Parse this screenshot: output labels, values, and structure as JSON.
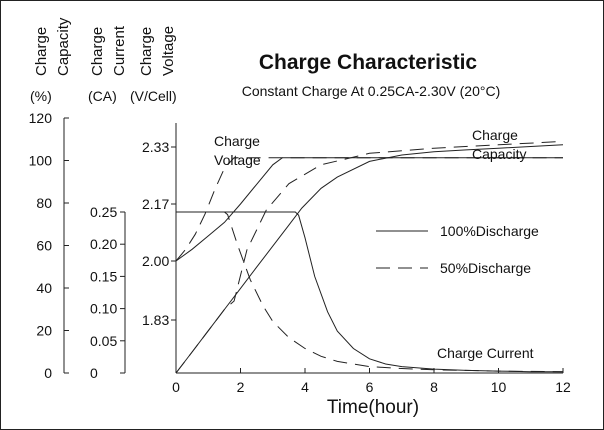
{
  "chart_data": {
    "type": "line",
    "title": "Charge Characteristic",
    "subtitle": "Constant Charge At 0.25CA-2.30V (20°C)",
    "title_color": "#7a2a7e",
    "xlabel": "Time(hour)",
    "xlim": [
      0,
      12
    ],
    "x_ticks": [
      0,
      2,
      4,
      6,
      8,
      10,
      12
    ],
    "axes": {
      "capacity": {
        "label_lines": [
          "Charge",
          "Capacity"
        ],
        "unit": "(%)",
        "ticks": [
          0,
          20,
          40,
          60,
          80,
          100,
          120
        ],
        "ylim": [
          0,
          120
        ]
      },
      "current": {
        "label_lines": [
          "Charge",
          "Current"
        ],
        "unit": "(CA)",
        "ticks": [
          "0",
          "0.05",
          "0.10",
          "0.15",
          "0.20",
          "0.25"
        ],
        "ylim": [
          0,
          0.25
        ]
      },
      "voltage": {
        "label_lines": [
          "Charge",
          "Voltage"
        ],
        "unit": "(V/Cell)",
        "ticks": [
          "1.83",
          "2.00",
          "2.17",
          "2.33"
        ],
        "ylim": [
          1.83,
          2.33
        ]
      }
    },
    "curve_labels": {
      "voltage": [
        "Charge",
        "Voltage"
      ],
      "capacity": [
        "Charge",
        "Capacity"
      ],
      "current": "Charge Current"
    },
    "legend": [
      {
        "label": "100%Discharge",
        "style": "solid"
      },
      {
        "label": "50%Discharge",
        "style": "dashed"
      }
    ],
    "legend_placement": "right",
    "series": [
      {
        "curve": "voltage",
        "discharge": "100%",
        "style": "solid",
        "x": [
          0,
          0.5,
          1,
          1.5,
          2,
          2.5,
          3,
          3.3,
          3.6,
          4,
          6,
          8,
          10,
          12
        ],
        "y": [
          2.0,
          2.035,
          2.075,
          2.115,
          2.17,
          2.225,
          2.28,
          2.3,
          2.3,
          2.3,
          2.3,
          2.3,
          2.3,
          2.3
        ]
      },
      {
        "curve": "voltage",
        "discharge": "50%",
        "style": "dashed",
        "x": [
          0,
          0.3,
          0.6,
          0.9,
          1.2,
          1.5,
          1.8,
          2.2,
          3,
          4,
          6,
          8,
          10,
          12
        ],
        "y": [
          2.0,
          2.035,
          2.08,
          2.14,
          2.21,
          2.27,
          2.3,
          2.3,
          2.3,
          2.3,
          2.3,
          2.3,
          2.3,
          2.3
        ]
      },
      {
        "curve": "capacity",
        "discharge": "100%",
        "style": "solid",
        "x": [
          0,
          0.5,
          1,
          1.5,
          2,
          2.5,
          3,
          3.5,
          3.9,
          4.5,
          5,
          6,
          7,
          8,
          9,
          10,
          11,
          12
        ],
        "y": [
          0,
          9.9,
          19.9,
          29.9,
          39.8,
          49.8,
          59.7,
          69.6,
          77.6,
          86.9,
          92.2,
          99.6,
          102.6,
          104.1,
          105.0,
          105.8,
          106.6,
          107.4
        ]
      },
      {
        "curve": "capacity",
        "discharge": "50%",
        "style": "dashed",
        "x": [
          0,
          0.5,
          1,
          1.5,
          1.8,
          2.2,
          2.8,
          3.5,
          4.5,
          6,
          8,
          10,
          12
        ],
        "y": [
          0,
          9.9,
          19.9,
          29.9,
          33.9,
          57.9,
          76.7,
          89.1,
          98.0,
          103.4,
          105.8,
          107.4,
          109.0
        ]
      },
      {
        "curve": "current",
        "discharge": "100%",
        "style": "solid",
        "x": [
          0,
          3.7,
          3.8,
          4.0,
          4.3,
          4.7,
          5.0,
          5.5,
          6.0,
          6.5,
          7.0,
          8.0,
          9.0,
          10.0,
          11.0,
          12.0
        ],
        "y": [
          0.25,
          0.25,
          0.245,
          0.21,
          0.15,
          0.095,
          0.065,
          0.038,
          0.022,
          0.014,
          0.01,
          0.006,
          0.004,
          0.003,
          0.002,
          0.002
        ]
      },
      {
        "curve": "current",
        "discharge": "50%",
        "style": "dashed",
        "x": [
          0,
          1.5,
          1.6,
          1.9,
          2.3,
          2.7,
          3.0,
          3.5,
          4.0,
          4.5,
          5.0,
          6.0,
          7.0,
          8.0,
          9.0,
          10.0,
          12.0
        ],
        "y": [
          0.25,
          0.25,
          0.246,
          0.2,
          0.145,
          0.104,
          0.08,
          0.055,
          0.038,
          0.026,
          0.018,
          0.01,
          0.007,
          0.005,
          0.004,
          0.003,
          0.002
        ]
      }
    ]
  }
}
